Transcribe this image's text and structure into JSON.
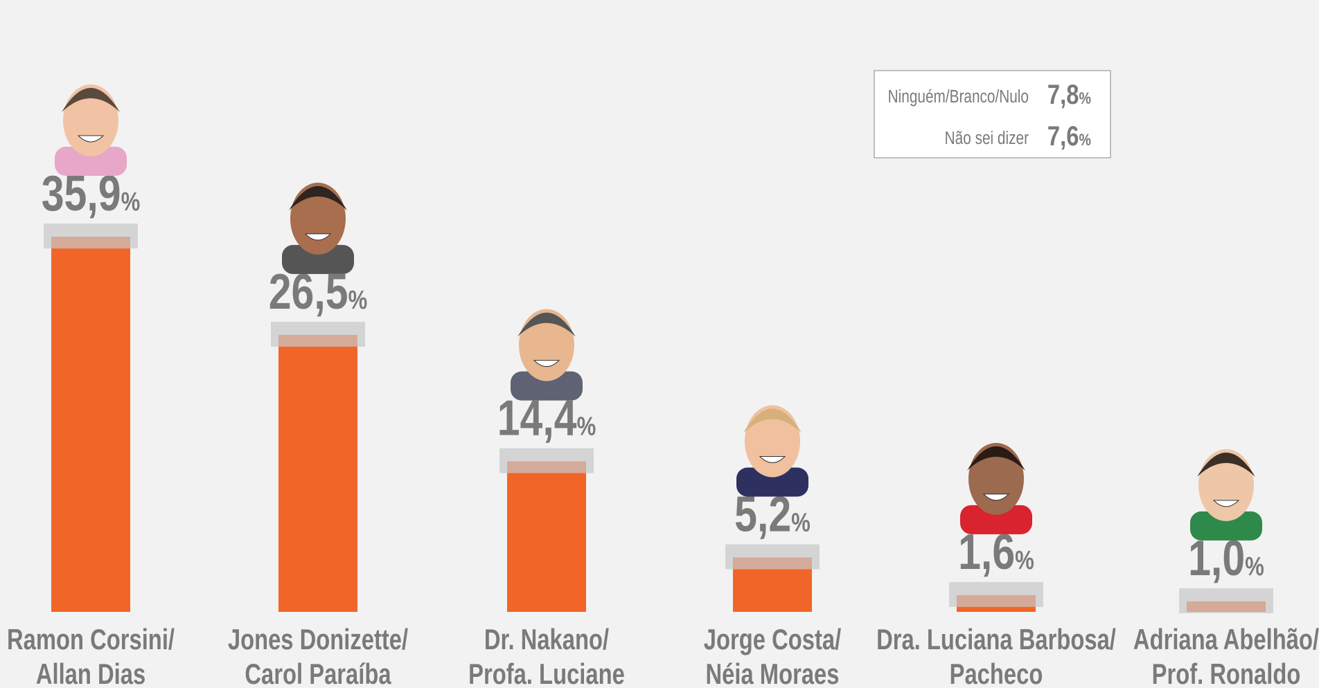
{
  "chart_data": {
    "type": "bar",
    "categories": [
      [
        "Ramon Corsini/",
        "Allan Dias"
      ],
      [
        "Jones Donizette/",
        "Carol Paraíba"
      ],
      [
        "Dr. Nakano/",
        "Profa. Luciane"
      ],
      [
        "Jorge Costa/",
        "Néia Moraes"
      ],
      [
        "Dra. Luciana Barbosa/",
        "Pacheco"
      ],
      [
        "Adriana Abelhão/",
        "Prof. Ronaldo"
      ]
    ],
    "values": [
      35.9,
      26.5,
      14.4,
      5.2,
      1.6,
      1.0
    ],
    "value_labels": [
      "35,9%",
      "26,5%",
      "14,4%",
      "5,2%",
      "1,6%",
      "1,0%"
    ],
    "color": "#f26529",
    "others": [
      {
        "label": "Ninguém/Branco/Nulo",
        "value_label": "7,8%"
      },
      {
        "label": "Não sei dizer",
        "value_label": "7,6%"
      }
    ]
  }
}
